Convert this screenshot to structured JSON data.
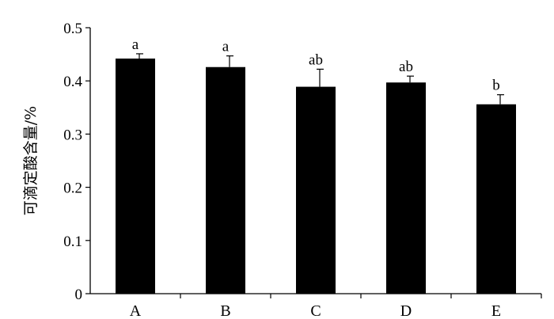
{
  "chart_data": {
    "type": "bar",
    "categories": [
      "A",
      "B",
      "C",
      "D",
      "E"
    ],
    "values": [
      0.442,
      0.426,
      0.389,
      0.397,
      0.356
    ],
    "error": [
      0.009,
      0.021,
      0.033,
      0.012,
      0.018
    ],
    "significance": [
      "a",
      "a",
      "ab",
      "ab",
      "b"
    ],
    "ylabel": "可滴定酸含量/%",
    "ylim": [
      0,
      0.5
    ],
    "yticks": [
      0,
      0.1,
      0.2,
      0.3,
      0.4,
      0.5
    ],
    "ytick_labels": [
      "0",
      "0.1",
      "0.2",
      "0.3",
      "0.4",
      "0.5"
    ],
    "grid": false,
    "bar_color": "#000000"
  }
}
